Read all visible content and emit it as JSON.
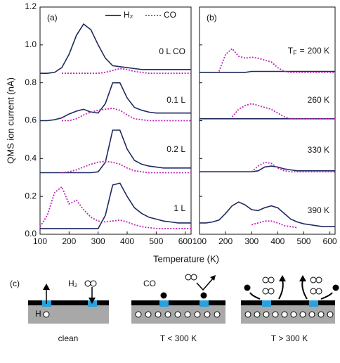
{
  "chart_data": [
    {
      "type": "line",
      "panel_label": "(a)",
      "ylabel": "QMS ion current (nA)",
      "xlim": [
        100,
        620
      ],
      "ylim": [
        0,
        1.2
      ],
      "xticks": [
        100,
        200,
        300,
        400,
        500,
        600
      ],
      "yticks": [
        {
          "value": 0,
          "label": "0.0"
        },
        0.2,
        0.4,
        0.6,
        0.8,
        {
          "value": 1,
          "label": "1.0"
        },
        1.2
      ],
      "x": [
        100,
        125,
        150,
        175,
        200,
        225,
        250,
        275,
        300,
        325,
        350,
        375,
        400,
        425,
        450,
        475,
        500,
        525,
        550,
        575,
        600,
        620
      ],
      "annotations": [
        "0 L CO",
        "0.1 L",
        "0.2 L",
        "1 L"
      ],
      "series": [
        {
          "name": "H₂",
          "color": "#1f2a5e",
          "dashed": false,
          "traces": [
            {
              "values": [
                0.85,
                0.85,
                0.855,
                0.88,
                0.95,
                1.05,
                1.11,
                1.08,
                1.0,
                0.93,
                0.89,
                0.885,
                0.88,
                0.875,
                0.87,
                0.87,
                0.87,
                0.87,
                0.87,
                0.87,
                0.87,
                0.87
              ]
            },
            {
              "values": [
                0.6,
                0.6,
                0.605,
                0.615,
                0.635,
                0.65,
                0.66,
                0.645,
                0.64,
                0.69,
                0.8,
                0.8,
                0.72,
                0.67,
                0.655,
                0.645,
                0.64,
                0.64,
                0.64,
                0.64,
                0.64,
                0.64
              ]
            },
            {
              "values": [
                0.325,
                0.325,
                0.325,
                0.325,
                0.325,
                0.325,
                0.325,
                0.325,
                0.33,
                0.38,
                0.55,
                0.55,
                0.45,
                0.39,
                0.37,
                0.36,
                0.355,
                0.35,
                0.35,
                0.35,
                0.35,
                0.35
              ]
            },
            {
              "values": [
                0.03,
                0.03,
                0.03,
                0.03,
                0.03,
                0.03,
                0.03,
                0.03,
                0.03,
                0.1,
                0.26,
                0.27,
                0.2,
                0.14,
                0.11,
                0.09,
                0.08,
                0.07,
                0.065,
                0.06,
                0.06,
                0.06
              ]
            }
          ]
        },
        {
          "name": "CO",
          "color": "#c026b8",
          "dashed": true,
          "traces": [
            {
              "values": [
                null,
                null,
                null,
                0.85,
                0.85,
                0.85,
                0.85,
                0.85,
                0.85,
                0.855,
                0.865,
                0.875,
                0.87,
                0.86,
                0.855,
                0.85,
                0.85,
                0.85,
                0.85,
                0.85,
                0.85,
                0.85
              ]
            },
            {
              "values": [
                null,
                null,
                null,
                0.6,
                0.6,
                0.61,
                0.63,
                0.645,
                0.655,
                0.66,
                0.665,
                0.655,
                0.63,
                0.61,
                0.605,
                0.6,
                0.6,
                0.6,
                0.6,
                0.6,
                0.6,
                0.6
              ]
            },
            {
              "values": [
                null,
                null,
                null,
                0.325,
                0.33,
                0.34,
                0.355,
                0.37,
                0.38,
                0.385,
                0.38,
                0.37,
                0.35,
                0.335,
                0.33,
                0.325,
                0.325,
                0.325,
                0.325,
                0.325,
                0.325,
                0.325
              ]
            },
            {
              "values": [
                0.04,
                0.1,
                0.22,
                0.25,
                0.16,
                0.18,
                0.13,
                0.09,
                0.07,
                0.065,
                0.07,
                0.075,
                0.065,
                0.05,
                0.04,
                0.035,
                0.03,
                0.03,
                0.03,
                0.03,
                0.03,
                0.03
              ]
            }
          ]
        }
      ]
    },
    {
      "type": "line",
      "panel_label": "(b)",
      "xlabel": "Temperature (K)",
      "xlim": [
        100,
        620
      ],
      "ylim": [
        0,
        1.2
      ],
      "xticks": [
        100,
        200,
        300,
        400,
        500,
        600
      ],
      "yticks": [
        0,
        0.2,
        0.4,
        0.6,
        0.8,
        1,
        1.2
      ],
      "x": [
        100,
        125,
        150,
        175,
        200,
        225,
        250,
        275,
        300,
        325,
        350,
        375,
        400,
        425,
        450,
        475,
        500,
        525,
        550,
        575,
        600,
        620
      ],
      "annotation_prefix": {
        "symbol": "T",
        "subscript": "F",
        "equals": "="
      },
      "annotations": [
        "200 K",
        "260 K",
        "330 K",
        "390 K"
      ],
      "series": [
        {
          "name": "H₂",
          "color": "#1f2a5e",
          "dashed": false,
          "traces": [
            {
              "values": [
                0.855,
                0.855,
                0.855,
                0.855,
                0.855,
                0.855,
                0.855,
                0.855,
                0.86,
                0.86,
                0.86,
                0.86,
                0.86,
                0.86,
                0.86,
                0.86,
                0.86,
                0.86,
                0.86,
                0.86,
                0.86,
                0.86
              ]
            },
            {
              "values": [
                0.61,
                0.61,
                0.61,
                0.61,
                0.61,
                0.61,
                0.61,
                0.61,
                0.61,
                0.61,
                0.61,
                0.61,
                0.61,
                0.61,
                0.61,
                0.61,
                0.61,
                0.61,
                0.61,
                0.61,
                0.61,
                0.61
              ]
            },
            {
              "values": [
                0.33,
                0.33,
                0.33,
                0.33,
                0.33,
                0.33,
                0.33,
                0.33,
                0.33,
                0.335,
                0.355,
                0.36,
                0.355,
                0.345,
                0.34,
                0.335,
                0.335,
                0.335,
                0.335,
                0.335,
                0.335,
                0.335
              ]
            },
            {
              "values": [
                0.06,
                0.06,
                0.065,
                0.075,
                0.11,
                0.15,
                0.17,
                0.155,
                0.13,
                0.125,
                0.14,
                0.15,
                0.14,
                0.11,
                0.08,
                0.065,
                0.055,
                0.05,
                0.045,
                0.04,
                0.04,
                0.04
              ]
            }
          ]
        },
        {
          "name": "CO",
          "color": "#c026b8",
          "dashed": true,
          "traces": [
            {
              "values": [
                null,
                null,
                null,
                0.86,
                0.95,
                0.98,
                0.94,
                0.93,
                0.935,
                0.93,
                0.92,
                0.91,
                0.88,
                0.86,
                0.855,
                0.855,
                0.855,
                0.855,
                0.855,
                0.855,
                0.855,
                0.855
              ]
            },
            {
              "values": [
                null,
                null,
                null,
                null,
                null,
                0.62,
                0.66,
                0.68,
                0.69,
                0.68,
                0.67,
                0.66,
                0.64,
                0.62,
                0.61,
                0.61,
                0.61,
                0.61,
                0.61,
                0.61,
                0.61,
                0.61
              ]
            },
            {
              "values": [
                null,
                null,
                null,
                null,
                null,
                null,
                null,
                null,
                0.33,
                0.36,
                0.38,
                0.375,
                0.35,
                0.335,
                0.33,
                0.33,
                0.33,
                0.33,
                0.33,
                0.33,
                0.33,
                0.33
              ]
            },
            {
              "values": [
                null,
                null,
                null,
                null,
                null,
                null,
                null,
                null,
                0.05,
                0.06,
                0.07,
                0.07,
                0.06,
                0.045,
                0.04,
                0.035,
                null,
                null,
                null,
                null,
                null,
                null
              ]
            }
          ]
        }
      ]
    }
  ],
  "diagram": {
    "label": "(c)",
    "clean_caption": "clean",
    "clean_molecule": "H₂",
    "clean_atom": "H",
    "low_caption": "T < 300 K",
    "low_adsorbate": "CO",
    "high_caption": "T > 300 K"
  }
}
